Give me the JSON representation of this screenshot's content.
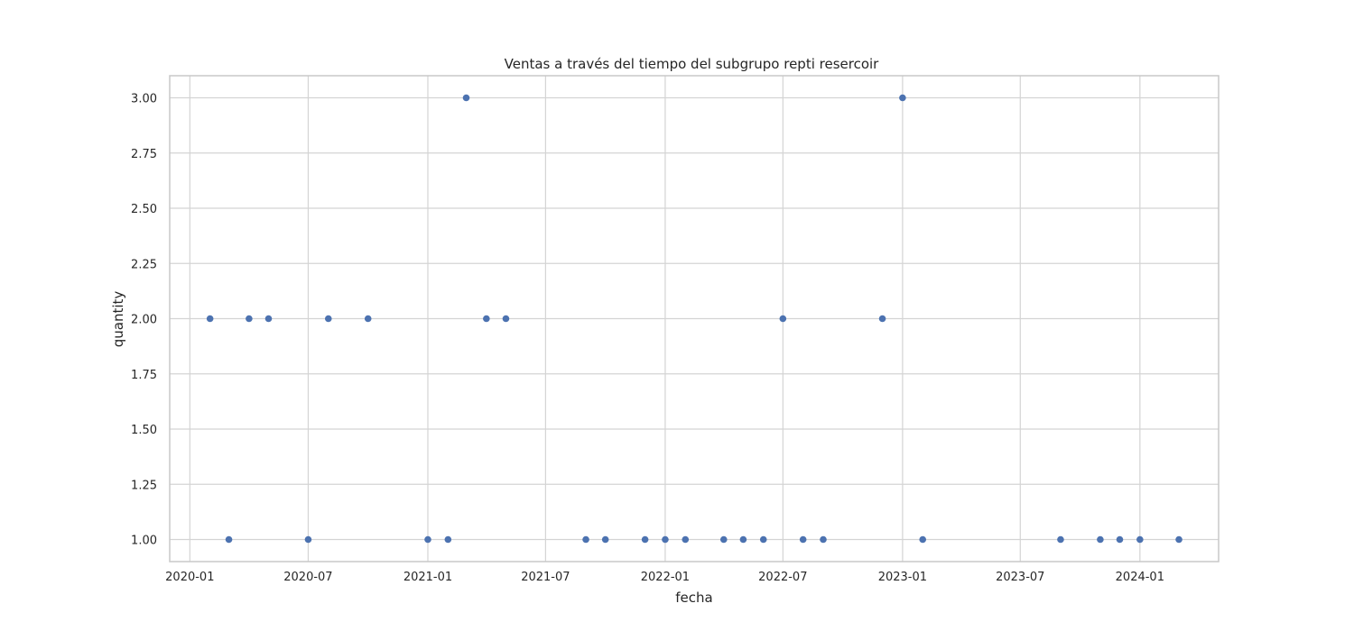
{
  "chart_data": {
    "type": "scatter",
    "title": "Ventas a través del tiempo del subgrupo  repti resercoir",
    "xlabel": "fecha",
    "ylabel": "quantity",
    "x_ticks": [
      "2020-01",
      "2020-07",
      "2021-01",
      "2021-07",
      "2022-01",
      "2022-07",
      "2023-01",
      "2023-07",
      "2024-01"
    ],
    "y_ticks": [
      "1.00",
      "1.25",
      "1.50",
      "1.75",
      "2.00",
      "2.25",
      "2.50",
      "2.75",
      "3.00"
    ],
    "xlim": [
      "2019-12-01",
      "2024-05-01"
    ],
    "ylim": [
      0.9,
      3.1
    ],
    "grid": true,
    "color": "#4c72b0",
    "points": [
      {
        "x": "2020-02-01",
        "y": 2
      },
      {
        "x": "2020-03-01",
        "y": 1
      },
      {
        "x": "2020-04-01",
        "y": 2
      },
      {
        "x": "2020-05-01",
        "y": 2
      },
      {
        "x": "2020-07-01",
        "y": 1
      },
      {
        "x": "2020-08-01",
        "y": 2
      },
      {
        "x": "2020-10-01",
        "y": 2
      },
      {
        "x": "2021-01-01",
        "y": 1
      },
      {
        "x": "2021-02-01",
        "y": 1
      },
      {
        "x": "2021-03-01",
        "y": 3
      },
      {
        "x": "2021-04-01",
        "y": 2
      },
      {
        "x": "2021-05-01",
        "y": 2
      },
      {
        "x": "2021-09-01",
        "y": 1
      },
      {
        "x": "2021-10-01",
        "y": 1
      },
      {
        "x": "2021-12-01",
        "y": 1
      },
      {
        "x": "2022-01-01",
        "y": 1
      },
      {
        "x": "2022-02-01",
        "y": 1
      },
      {
        "x": "2022-04-01",
        "y": 1
      },
      {
        "x": "2022-05-01",
        "y": 1
      },
      {
        "x": "2022-06-01",
        "y": 1
      },
      {
        "x": "2022-07-01",
        "y": 2
      },
      {
        "x": "2022-08-01",
        "y": 1
      },
      {
        "x": "2022-09-01",
        "y": 1
      },
      {
        "x": "2022-12-01",
        "y": 2
      },
      {
        "x": "2023-01-01",
        "y": 3
      },
      {
        "x": "2023-02-01",
        "y": 1
      },
      {
        "x": "2023-09-01",
        "y": 1
      },
      {
        "x": "2023-11-01",
        "y": 1
      },
      {
        "x": "2023-12-01",
        "y": 1
      },
      {
        "x": "2024-01-01",
        "y": 1
      },
      {
        "x": "2024-03-01",
        "y": 1
      }
    ]
  }
}
